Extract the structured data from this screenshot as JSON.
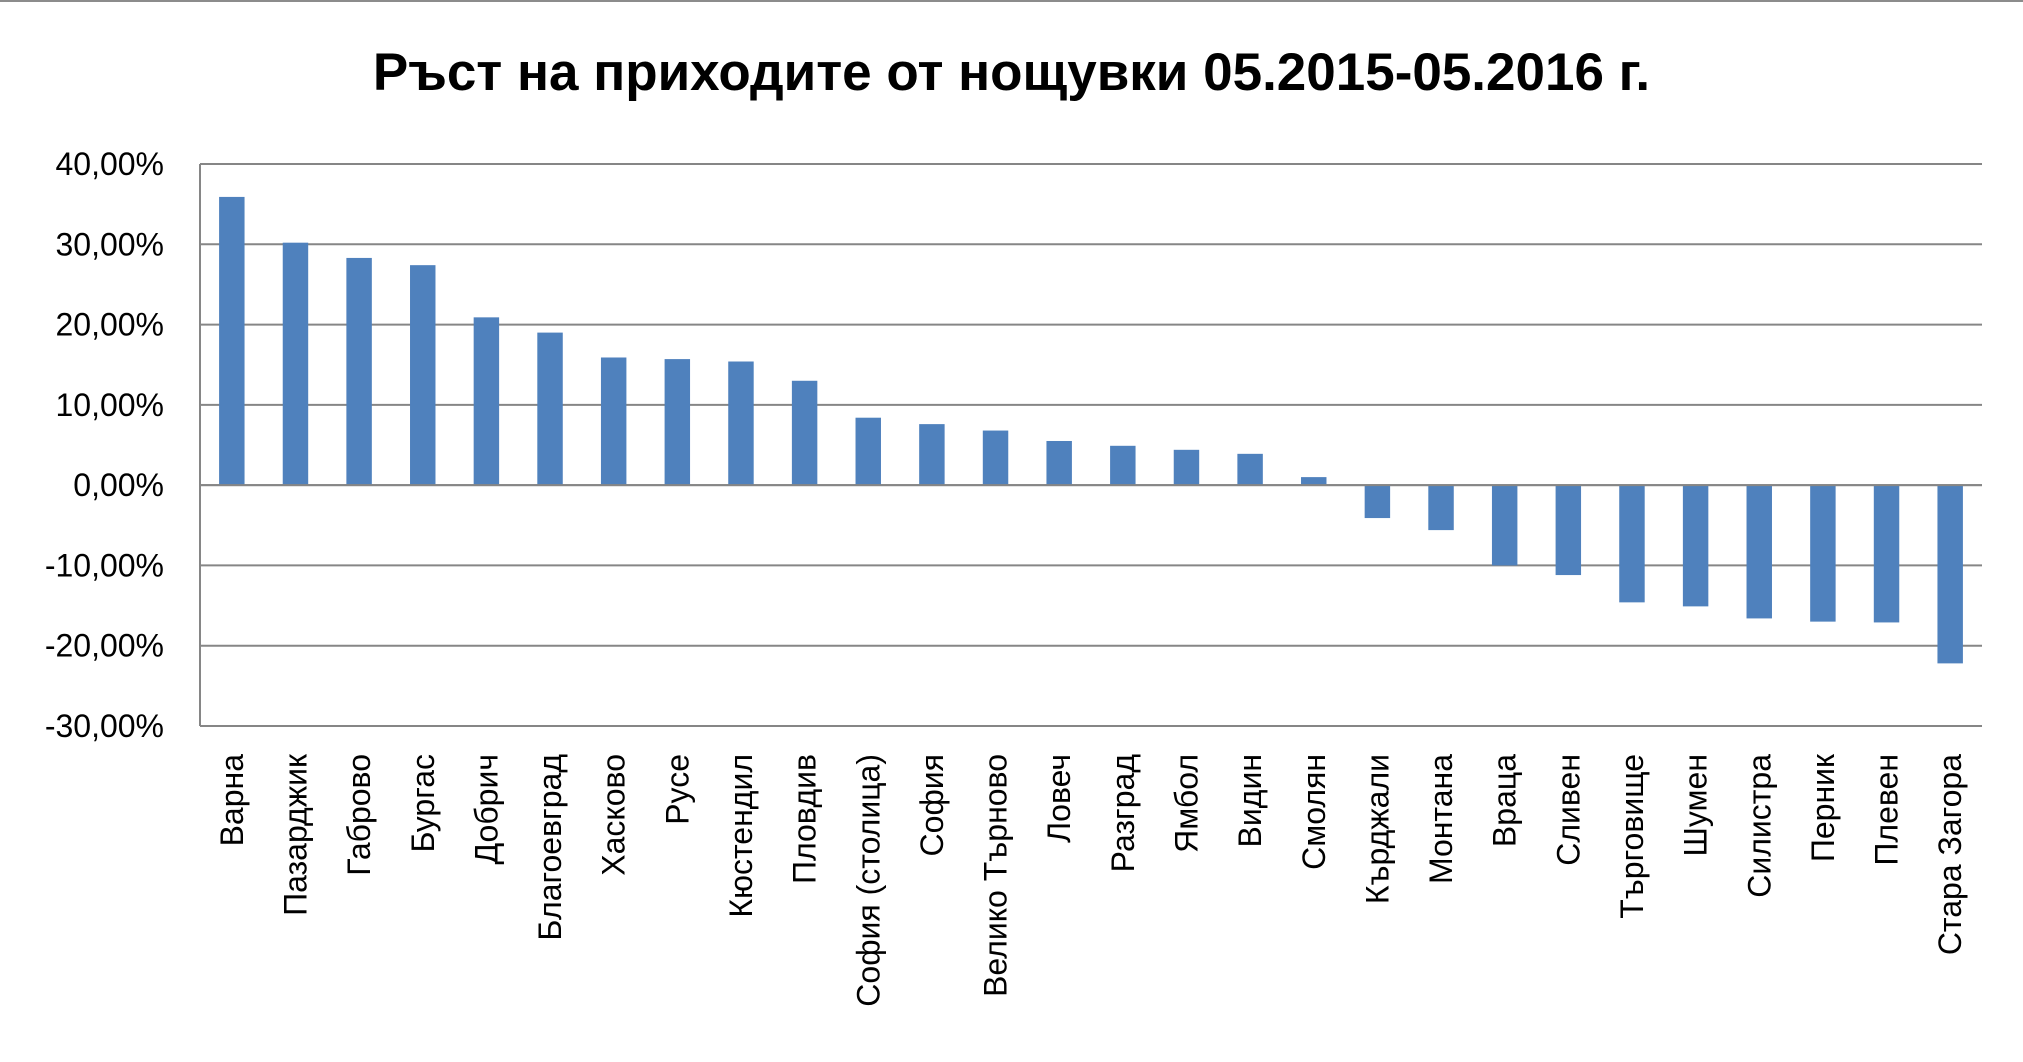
{
  "chart_data": {
    "type": "bar",
    "title": "Ръст на приходите от нощувки 05.2015-05.2016 г.",
    "xlabel": "",
    "ylabel": "",
    "ylim": [
      -30,
      40
    ],
    "y_ticks": [
      {
        "value": 40,
        "label": "40,00%"
      },
      {
        "value": 30,
        "label": "30,00%"
      },
      {
        "value": 20,
        "label": "20,00%"
      },
      {
        "value": 10,
        "label": "10,00%"
      },
      {
        "value": 0,
        "label": "0,00%"
      },
      {
        "value": -10,
        "label": "-10,00%"
      },
      {
        "value": -20,
        "label": "-20,00%"
      },
      {
        "value": -30,
        "label": "-30,00%"
      }
    ],
    "grid": true,
    "legend": "none",
    "bar_color": "#4f81bd",
    "categories": [
      "Варна",
      "Пазарджик",
      "Габрово",
      "Бургас",
      "Добрич",
      "Благоевград",
      "Хасково",
      "Русе",
      "Кюстендил",
      "Пловдив",
      "София (столица)",
      "София",
      "Велико Търново",
      "Ловеч",
      "Разград",
      "Ямбол",
      "Видин",
      "Смолян",
      "Кърджали",
      "Монтана",
      "Враца",
      "Сливен",
      "Търговище",
      "Шумен",
      "Силистра",
      "Перник",
      "Плевен",
      "Стара Загора"
    ],
    "values": [
      35.9,
      30.2,
      28.3,
      27.4,
      20.9,
      19.0,
      15.9,
      15.7,
      15.4,
      13.0,
      8.4,
      7.6,
      6.8,
      5.5,
      4.9,
      4.4,
      3.9,
      1.0,
      -4.1,
      -5.6,
      -10.0,
      -11.2,
      -14.6,
      -15.1,
      -16.6,
      -17.0,
      -17.1,
      -22.2
    ],
    "unit": "%"
  }
}
